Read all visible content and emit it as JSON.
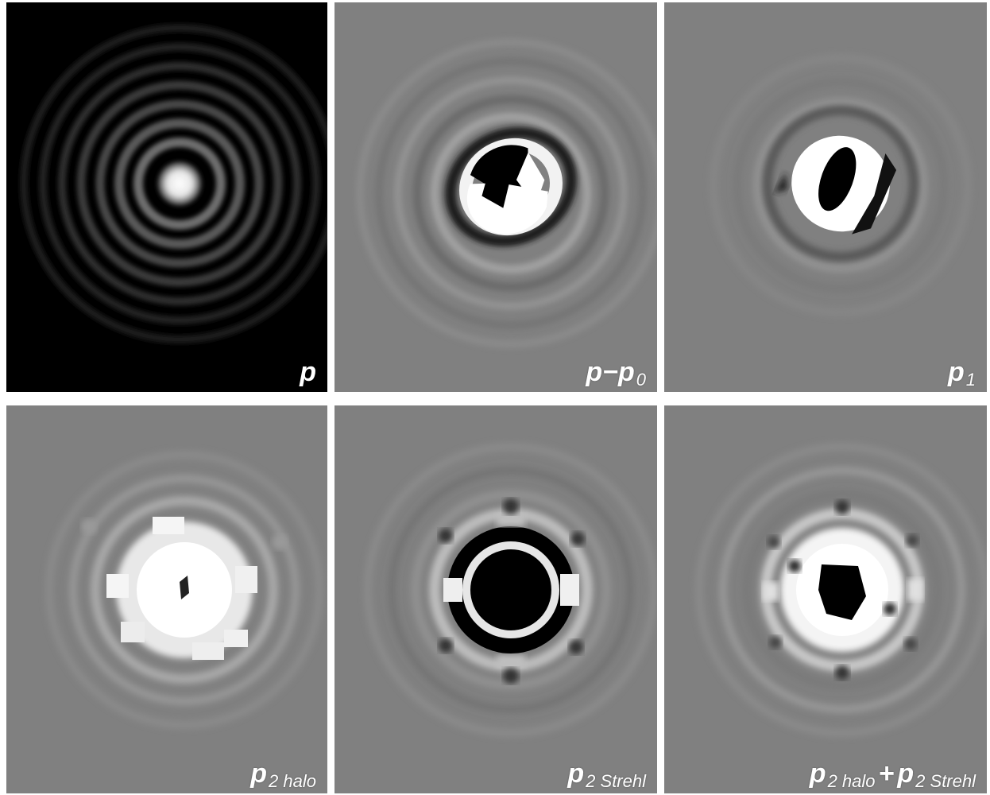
{
  "panels": [
    {
      "id": "p",
      "label_main": "p",
      "label_op": "",
      "label_main2": "",
      "label_sub": "",
      "label_sub2": ""
    },
    {
      "id": "pmp0",
      "label_main": "p",
      "label_op": "−",
      "label_main2": "p",
      "label_sub": "",
      "label_sub2": "0"
    },
    {
      "id": "p1",
      "label_main": "p",
      "label_op": "",
      "label_main2": "",
      "label_sub": "1",
      "label_sub2": ""
    },
    {
      "id": "p2halo",
      "label_main": "p",
      "label_op": "",
      "label_main2": "",
      "label_sub": "2 halo",
      "label_sub2": ""
    },
    {
      "id": "p2strehl",
      "label_main": "p",
      "label_op": "",
      "label_main2": "",
      "label_sub": "2 Strehl",
      "label_sub2": ""
    },
    {
      "id": "p2sum",
      "label_main": "p",
      "label_op": "+",
      "label_main2": "p",
      "label_sub": "2 halo",
      "label_sub2": "2 Strehl"
    }
  ],
  "colors": {
    "black_bg": "#000000",
    "gray_bg": "#808080",
    "white": "#ffffff"
  }
}
